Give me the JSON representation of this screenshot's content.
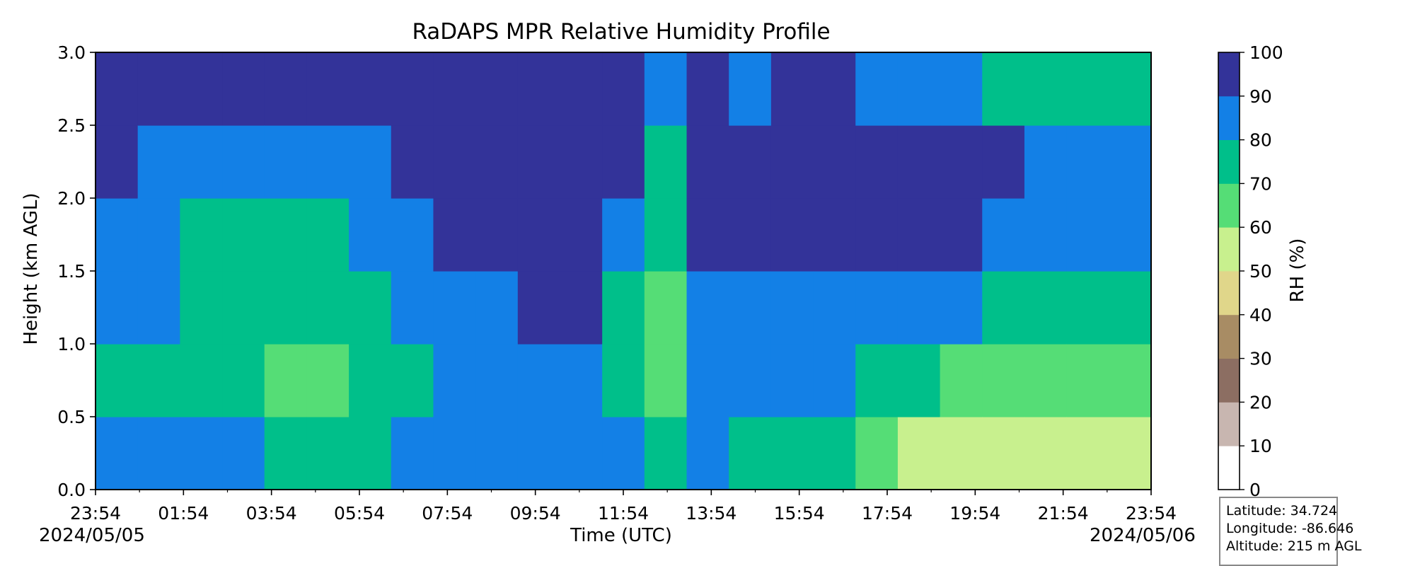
{
  "chart_data": {
    "type": "heatmap",
    "title": "RaDAPS MPR Relative Humidity Profile",
    "xlabel": "Time (UTC)",
    "ylabel": "Height (km AGL)",
    "ylim": [
      0,
      3.0
    ],
    "y_ticks": [
      "0.0",
      "0.5",
      "1.0",
      "1.5",
      "2.0",
      "2.5",
      "3.0"
    ],
    "x_ticks": [
      "23:54",
      "01:54",
      "03:54",
      "05:54",
      "07:54",
      "09:54",
      "11:54",
      "13:54",
      "15:54",
      "17:54",
      "19:54",
      "21:54",
      "23:54"
    ],
    "date_start": "2024/05/05",
    "date_end": "2024/05/06",
    "colorbar": {
      "label": "RH (%)",
      "levels": [
        0,
        10,
        20,
        30,
        40,
        50,
        60,
        70,
        80,
        90,
        100
      ],
      "colors": [
        "#ffffff",
        "#c8b6b0",
        "#8c6e62",
        "#a88c64",
        "#e0d68a",
        "#c8f08e",
        "#55dd76",
        "#00bf8a",
        "#1380e6",
        "#333399"
      ]
    },
    "rh_profile": {
      "hours_from_start": [
        0,
        1,
        2,
        3,
        4,
        5,
        6,
        7,
        8,
        9,
        10,
        11,
        12,
        13,
        14,
        15,
        16,
        17,
        18,
        19,
        20,
        21,
        22,
        23,
        24
      ],
      "heights_km": [
        0.25,
        0.75,
        1.25,
        1.75,
        2.25,
        2.75
      ],
      "rh_percent": [
        [
          85,
          75,
          85,
          85,
          95,
          95
        ],
        [
          85,
          75,
          85,
          85,
          85,
          95
        ],
        [
          85,
          75,
          75,
          75,
          85,
          95
        ],
        [
          85,
          75,
          75,
          75,
          85,
          95
        ],
        [
          75,
          65,
          75,
          75,
          85,
          95
        ],
        [
          75,
          65,
          75,
          75,
          85,
          95
        ],
        [
          75,
          75,
          75,
          85,
          85,
          95
        ],
        [
          85,
          75,
          85,
          85,
          95,
          95
        ],
        [
          85,
          85,
          85,
          95,
          95,
          95
        ],
        [
          85,
          85,
          85,
          95,
          95,
          95
        ],
        [
          85,
          85,
          95,
          95,
          95,
          95
        ],
        [
          85,
          85,
          95,
          95,
          95,
          95
        ],
        [
          85,
          75,
          75,
          85,
          95,
          95
        ],
        [
          75,
          65,
          65,
          75,
          75,
          85
        ],
        [
          85,
          85,
          85,
          95,
          95,
          95
        ],
        [
          75,
          85,
          85,
          95,
          95,
          85
        ],
        [
          75,
          85,
          85,
          95,
          95,
          95
        ],
        [
          75,
          85,
          85,
          95,
          95,
          95
        ],
        [
          65,
          75,
          85,
          95,
          95,
          85
        ],
        [
          55,
          75,
          85,
          95,
          95,
          85
        ],
        [
          55,
          65,
          85,
          95,
          95,
          85
        ],
        [
          55,
          65,
          75,
          85,
          95,
          75
        ],
        [
          55,
          65,
          75,
          85,
          85,
          75
        ],
        [
          55,
          65,
          75,
          85,
          85,
          75
        ],
        [
          55,
          65,
          75,
          85,
          85,
          75
        ]
      ]
    }
  },
  "info": {
    "latitude": "Latitude: 34.724",
    "longitude": "Longitude: -86.646",
    "altitude": "Altitude: 215 m AGL"
  }
}
